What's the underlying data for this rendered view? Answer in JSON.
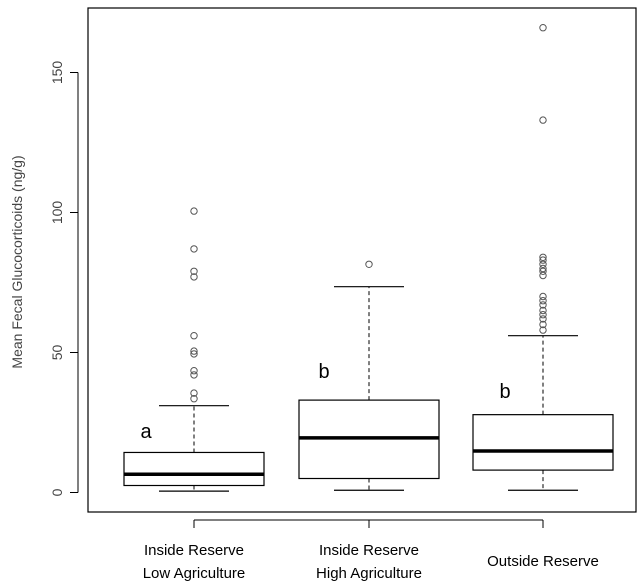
{
  "chart_data": {
    "type": "boxplot",
    "title": "",
    "xlabel": "",
    "ylabel": "Mean Fecal Glucocorticoids (ng/g)",
    "ylim": [
      -8,
      172
    ],
    "yticks": [
      0,
      50,
      100,
      150
    ],
    "grid": false,
    "categories": [
      {
        "line1": "Inside Reserve",
        "line2": "Low Agriculture"
      },
      {
        "line1": "Inside Reserve",
        "line2": "High Agriculture"
      },
      {
        "line1": "Outside Reserve",
        "line2": ""
      }
    ],
    "boxes": [
      {
        "label": "a",
        "whisker_low": 0.5,
        "q1": 2.5,
        "median": 6.5,
        "q3": 14.3,
        "whisker_high": 31,
        "outliers": [
          33.5,
          35.5,
          42,
          43.5,
          49.5,
          50.5,
          56,
          77,
          79,
          87,
          100.5
        ]
      },
      {
        "label": "b",
        "whisker_low": 0.8,
        "q1": 5,
        "median": 19.5,
        "q3": 33,
        "whisker_high": 73.5,
        "outliers": [
          81.5
        ]
      },
      {
        "label": "b",
        "whisker_low": 0.8,
        "q1": 8,
        "median": 14.8,
        "q3": 27.8,
        "whisker_high": 56,
        "outliers": [
          58,
          60,
          62,
          63.5,
          65,
          67,
          68.5,
          70,
          77.5,
          79,
          80,
          81.5,
          83,
          84,
          133,
          166
        ]
      }
    ]
  }
}
